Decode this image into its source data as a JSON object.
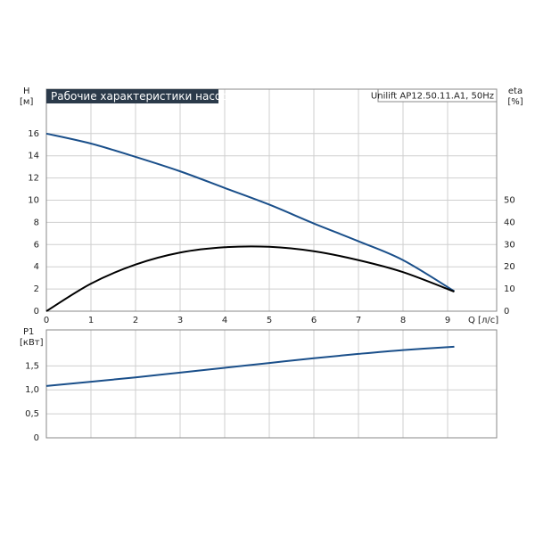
{
  "chart_data": [
    {
      "type": "line",
      "title": "Рабочие характеристики насоса",
      "annotation": "Unilift AP12.50.11.A1, 50Hz",
      "ylabel": "H",
      "yunit": "[м]",
      "y2label": "eta",
      "y2unit": "[%]",
      "xlabel": "Q [л/с]",
      "x": [
        0,
        1,
        2,
        3,
        4,
        5,
        6,
        7,
        8,
        9.15
      ],
      "series": [
        {
          "color": "#1a4f8a",
          "values": [
            16,
            15.1,
            13.9,
            12.6,
            11.1,
            9.6,
            7.9,
            6.3,
            4.6,
            1.8
          ]
        },
        {
          "color": "#000000",
          "axis": "y2",
          "values": [
            0,
            12.4,
            21,
            26.4,
            28.8,
            29,
            27,
            23,
            17.6,
            8.8
          ]
        }
      ],
      "xlim": [
        0,
        10.1
      ],
      "xticks": [
        0,
        1,
        2,
        3,
        4,
        5,
        6,
        7,
        8,
        9
      ],
      "ylim": [
        0,
        20
      ],
      "yticks": [
        0,
        2,
        4,
        6,
        8,
        10,
        12,
        14,
        16
      ],
      "y2lim": [
        0,
        100
      ],
      "y2ticks": [
        0,
        10,
        20,
        30,
        40,
        50
      ],
      "grid": true
    },
    {
      "type": "line",
      "ylabel": "P1",
      "yunit": "[кВт]",
      "x": [
        0,
        1,
        2,
        3,
        4,
        5,
        6,
        7,
        8,
        9.15
      ],
      "series": [
        {
          "color": "#1a4f8a",
          "values": [
            1.08,
            1.17,
            1.26,
            1.36,
            1.46,
            1.56,
            1.66,
            1.75,
            1.83,
            1.9
          ]
        }
      ],
      "xlim": [
        0,
        10.1
      ],
      "ylim": [
        0,
        2.25
      ],
      "yticks": [
        0,
        {
          "value": 0.5,
          "label": "0,5"
        },
        {
          "value": 1,
          "label": "1,0"
        },
        {
          "value": 1.5,
          "label": "1,5"
        }
      ],
      "grid": true
    }
  ]
}
